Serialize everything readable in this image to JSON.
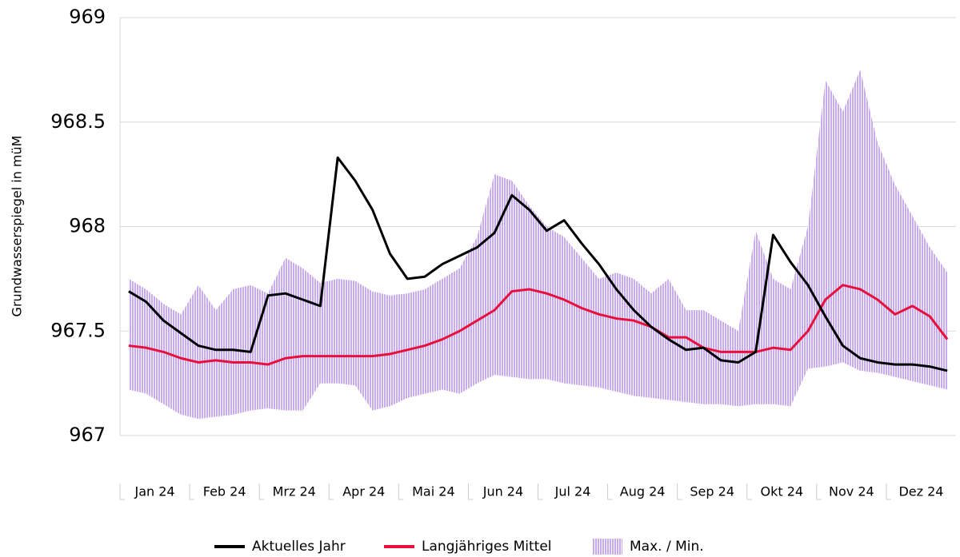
{
  "chart_data": {
    "type": "line",
    "y_label": "Grundwasserspiegel in müM",
    "categories": [
      "Jan 24",
      null,
      null,
      null,
      "Feb 24",
      null,
      null,
      null,
      "Mrz 24",
      null,
      null,
      null,
      "Apr 24",
      null,
      null,
      null,
      "Mai 24",
      null,
      null,
      null,
      "Jun 24",
      null,
      null,
      null,
      "Jul 24",
      null,
      null,
      null,
      "Aug 24",
      null,
      null,
      null,
      "Sep 24",
      null,
      null,
      null,
      "Okt 24",
      null,
      null,
      null,
      "Nov 24",
      null,
      null,
      null,
      "Dez 24",
      null,
      null,
      null
    ],
    "ylim": [
      967,
      969
    ],
    "yticks": [
      967,
      967.5,
      968,
      968.5,
      969
    ],
    "grid": true,
    "series": [
      {
        "name": "Aktuelles Jahr",
        "color": "#000000",
        "values": [
          967.69,
          967.64,
          967.55,
          967.49,
          967.43,
          967.41,
          967.41,
          967.4,
          967.67,
          967.68,
          967.65,
          967.62,
          968.33,
          968.22,
          968.08,
          967.87,
          967.75,
          967.76,
          967.82,
          967.86,
          967.9,
          967.97,
          968.15,
          968.08,
          967.98,
          968.03,
          967.92,
          967.82,
          967.7,
          967.6,
          967.52,
          967.46,
          967.41,
          967.42,
          967.36,
          967.35,
          967.4,
          967.96,
          967.83,
          967.72,
          967.57,
          967.43,
          967.37,
          967.35,
          967.34,
          967.34,
          967.33,
          967.31
        ]
      },
      {
        "name": "Langjähriges Mittel",
        "color": "#e8103a",
        "values": [
          967.43,
          967.42,
          967.4,
          967.37,
          967.35,
          967.36,
          967.35,
          967.35,
          967.34,
          967.37,
          967.38,
          967.38,
          967.38,
          967.38,
          967.38,
          967.39,
          967.41,
          967.43,
          967.46,
          967.5,
          967.55,
          967.6,
          967.69,
          967.7,
          967.68,
          967.65,
          967.61,
          967.58,
          967.56,
          967.55,
          967.52,
          967.47,
          967.47,
          967.42,
          967.4,
          967.4,
          967.4,
          967.42,
          967.41,
          967.5,
          967.65,
          967.72,
          967.7,
          967.65,
          967.58,
          967.62,
          967.57,
          967.46
        ]
      },
      {
        "name": "Max. / Min.",
        "color": "#b88de8",
        "high": [
          967.75,
          967.7,
          967.63,
          967.58,
          967.72,
          967.6,
          967.7,
          967.72,
          967.68,
          967.85,
          967.8,
          967.73,
          967.75,
          967.74,
          967.69,
          967.67,
          967.68,
          967.7,
          967.75,
          967.8,
          967.95,
          968.25,
          968.22,
          968.1,
          968.0,
          967.95,
          967.85,
          967.75,
          967.78,
          967.75,
          967.68,
          967.75,
          967.6,
          967.6,
          967.55,
          967.5,
          967.98,
          967.75,
          967.7,
          968.0,
          968.7,
          968.55,
          968.75,
          968.4,
          968.2,
          968.05,
          967.9,
          967.78
        ],
        "low": [
          967.22,
          967.2,
          967.15,
          967.1,
          967.08,
          967.09,
          967.1,
          967.12,
          967.13,
          967.12,
          967.12,
          967.25,
          967.25,
          967.24,
          967.12,
          967.14,
          967.18,
          967.2,
          967.22,
          967.2,
          967.25,
          967.29,
          967.28,
          967.27,
          967.27,
          967.25,
          967.24,
          967.23,
          967.21,
          967.19,
          967.18,
          967.17,
          967.16,
          967.15,
          967.15,
          967.14,
          967.15,
          967.15,
          967.14,
          967.32,
          967.33,
          967.35,
          967.31,
          967.3,
          967.28,
          967.26,
          967.24,
          967.22
        ]
      }
    ]
  }
}
